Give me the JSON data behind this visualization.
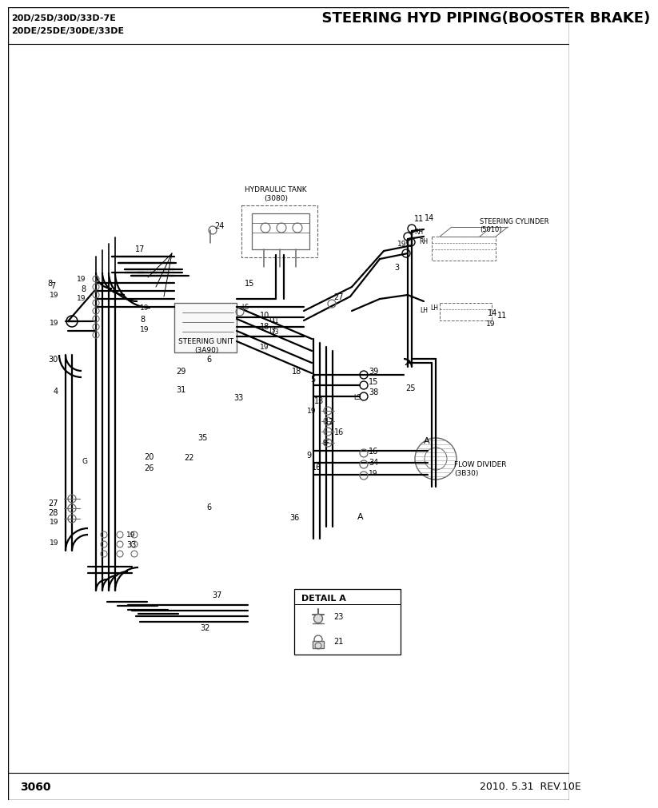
{
  "title_left_line1": "20D/25D/30D/33D-7E",
  "title_left_line2": "20DE/25DE/30DE/33DE",
  "title_right": "  STEERING HYD PIPING(BOOSTER BRAKE)",
  "page_num": "3060",
  "date_rev": "2010. 5.31  REV.10E",
  "bg": "#ffffff",
  "lc": "#000000",
  "mg": "#666666",
  "lg": "#999999"
}
